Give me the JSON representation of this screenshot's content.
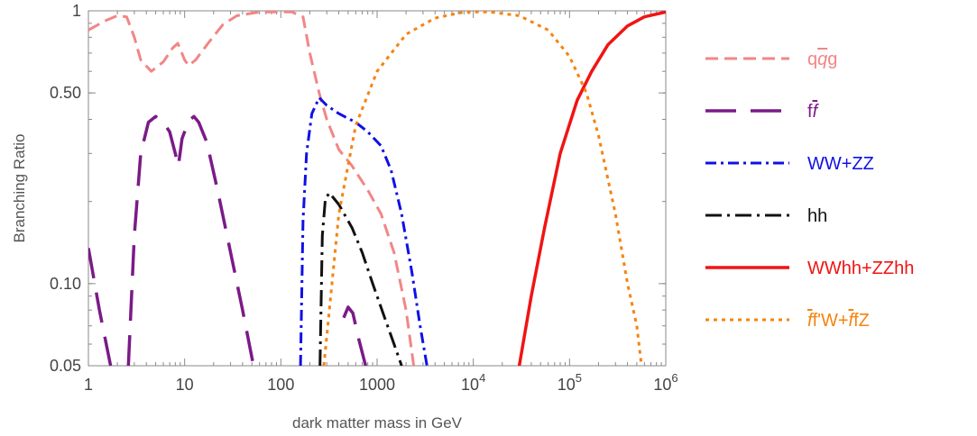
{
  "chart_data": {
    "type": "line",
    "title": "",
    "xlabel": "dark matter mass in GeV",
    "ylabel": "Branching Ratio",
    "xscale": "log",
    "yscale": "log",
    "xlim": [
      1,
      1000000
    ],
    "ylim": [
      0.05,
      1
    ],
    "grid": false,
    "legend_position": "right",
    "x_ticks": [
      {
        "value": 1,
        "label": "1"
      },
      {
        "value": 10,
        "label": "10"
      },
      {
        "value": 100,
        "label": "100"
      },
      {
        "value": 1000,
        "label": "1000"
      },
      {
        "value": 10000,
        "base": "10",
        "exp": "4"
      },
      {
        "value": 100000,
        "base": "10",
        "exp": "5"
      },
      {
        "value": 1000000,
        "base": "10",
        "exp": "6"
      }
    ],
    "y_ticks": [
      {
        "value": 0.05,
        "label": "0.05"
      },
      {
        "value": 0.1,
        "label": "0.10"
      },
      {
        "value": 0.5,
        "label": "0.50"
      },
      {
        "value": 1,
        "label": "1"
      }
    ],
    "series": [
      {
        "name": "qq̄g",
        "legend": [
          {
            "t": "q"
          },
          {
            "t": "q",
            "bar": true,
            "it": true
          },
          {
            "t": "g"
          }
        ],
        "color": "#f28686",
        "dash": "14 7",
        "width": 3,
        "points": [
          [
            1,
            0.85
          ],
          [
            1.5,
            0.92
          ],
          [
            2,
            0.96
          ],
          [
            2.5,
            0.95
          ],
          [
            3,
            0.8
          ],
          [
            3.5,
            0.66
          ],
          [
            4.5,
            0.6
          ],
          [
            6,
            0.65
          ],
          [
            7.5,
            0.73
          ],
          [
            8.5,
            0.76
          ],
          [
            10,
            0.66
          ],
          [
            11,
            0.63
          ],
          [
            13,
            0.66
          ],
          [
            18,
            0.77
          ],
          [
            25,
            0.89
          ],
          [
            35,
            0.96
          ],
          [
            60,
            0.99
          ],
          [
            130,
            0.99
          ],
          [
            170,
            0.95
          ],
          [
            200,
            0.7
          ],
          [
            250,
            0.5
          ],
          [
            300,
            0.4
          ],
          [
            400,
            0.31
          ],
          [
            550,
            0.27
          ],
          [
            800,
            0.22
          ],
          [
            1100,
            0.18
          ],
          [
            1500,
            0.13
          ],
          [
            2000,
            0.08
          ],
          [
            2400,
            0.05
          ]
        ]
      },
      {
        "name": "ff̄",
        "legend": [
          {
            "t": "f"
          },
          {
            "t": "f",
            "bar": true,
            "it": true
          }
        ],
        "color": "#7b1a88",
        "dash": "34 16",
        "width": 3.5,
        "segments": [
          [
            [
              1,
              0.135
            ],
            [
              1.3,
              0.08
            ],
            [
              1.7,
              0.05
            ]
          ],
          [
            [
              2.6,
              0.05
            ],
            [
              3,
              0.15
            ],
            [
              3.5,
              0.3
            ],
            [
              4.2,
              0.39
            ],
            [
              5,
              0.41
            ],
            [
              6,
              0.39
            ],
            [
              7,
              0.36
            ],
            [
              8,
              0.3
            ],
            [
              8.6,
              0.27
            ],
            [
              9.4,
              0.34
            ],
            [
              11,
              0.395
            ],
            [
              12.5,
              0.41
            ],
            [
              14,
              0.39
            ],
            [
              17,
              0.33
            ],
            [
              22,
              0.22
            ],
            [
              30,
              0.13
            ],
            [
              40,
              0.08
            ],
            [
              52,
              0.05
            ]
          ],
          [
            [
              450,
              0.075
            ],
            [
              500,
              0.082
            ],
            [
              560,
              0.078
            ],
            [
              650,
              0.062
            ],
            [
              760,
              0.05
            ]
          ]
        ]
      },
      {
        "name": "WW+ZZ",
        "legend": [
          {
            "t": "WW+ZZ"
          }
        ],
        "color": "#1010e6",
        "dash": "12 5 3 5",
        "width": 3,
        "points": [
          [
            160,
            0.05
          ],
          [
            170,
            0.17
          ],
          [
            185,
            0.3
          ],
          [
            210,
            0.42
          ],
          [
            250,
            0.48
          ],
          [
            300,
            0.45
          ],
          [
            400,
            0.42
          ],
          [
            600,
            0.39
          ],
          [
            800,
            0.36
          ],
          [
            1100,
            0.32
          ],
          [
            1400,
            0.26
          ],
          [
            1800,
            0.18
          ],
          [
            2300,
            0.11
          ],
          [
            2800,
            0.07
          ],
          [
            3300,
            0.05
          ]
        ]
      },
      {
        "name": "hh",
        "legend": [
          {
            "t": "hh"
          }
        ],
        "color": "#111111",
        "dash": "18 6 3 6",
        "width": 3,
        "points": [
          [
            255,
            0.05
          ],
          [
            270,
            0.15
          ],
          [
            290,
            0.205
          ],
          [
            320,
            0.215
          ],
          [
            400,
            0.195
          ],
          [
            550,
            0.16
          ],
          [
            700,
            0.13
          ],
          [
            900,
            0.1
          ],
          [
            1200,
            0.075
          ],
          [
            1500,
            0.06
          ],
          [
            1800,
            0.05
          ]
        ]
      },
      {
        "name": "WWhh+ZZhh",
        "legend": [
          {
            "t": "WWhh+ZZhh"
          }
        ],
        "color": "#f01414",
        "dash": "",
        "width": 3.5,
        "points": [
          [
            30000,
            0.05
          ],
          [
            40000,
            0.09
          ],
          [
            55000,
            0.16
          ],
          [
            80000,
            0.3
          ],
          [
            120000,
            0.47
          ],
          [
            170000,
            0.6
          ],
          [
            250000,
            0.75
          ],
          [
            400000,
            0.88
          ],
          [
            600000,
            0.95
          ],
          [
            1000000,
            0.99
          ]
        ]
      },
      {
        "name": "f̄f'W+f̄fZ",
        "legend": [
          {
            "t": "f",
            "bar": true,
            "it": true
          },
          {
            "t": "f'W+"
          },
          {
            "t": "f",
            "bar": true,
            "it": true
          },
          {
            "t": "fZ"
          }
        ],
        "color": "#f5840f",
        "dash": "4 5",
        "width": 3,
        "points": [
          [
            280,
            0.05
          ],
          [
            400,
            0.18
          ],
          [
            600,
            0.38
          ],
          [
            1000,
            0.6
          ],
          [
            2000,
            0.82
          ],
          [
            4000,
            0.94
          ],
          [
            8000,
            0.99
          ],
          [
            15000,
            0.99
          ],
          [
            30000,
            0.96
          ],
          [
            60000,
            0.85
          ],
          [
            100000,
            0.68
          ],
          [
            150000,
            0.5
          ],
          [
            200000,
            0.35
          ],
          [
            300000,
            0.18
          ],
          [
            400000,
            0.1
          ],
          [
            500000,
            0.07
          ],
          [
            560000,
            0.05
          ]
        ]
      }
    ]
  }
}
